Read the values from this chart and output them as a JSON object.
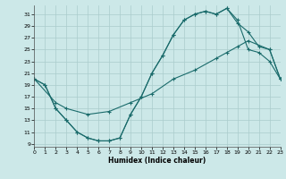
{
  "background_color": "#cce8e8",
  "grid_color": "#aacccc",
  "line_color": "#1a6b6b",
  "xlabel": "Humidex (Indice chaleur)",
  "xlim": [
    0,
    23
  ],
  "ylim": [
    8.5,
    32.5
  ],
  "xticks": [
    0,
    1,
    2,
    3,
    4,
    5,
    6,
    7,
    8,
    9,
    10,
    11,
    12,
    13,
    14,
    15,
    16,
    17,
    18,
    19,
    20,
    21,
    22,
    23
  ],
  "yticks": [
    9,
    11,
    13,
    15,
    17,
    19,
    21,
    23,
    25,
    27,
    29,
    31
  ],
  "line1_x": [
    0,
    1,
    2,
    3,
    4,
    5,
    6,
    7,
    8,
    9,
    10,
    11,
    12,
    13,
    14,
    15,
    16,
    17,
    18,
    19,
    20,
    21,
    22,
    23
  ],
  "line1_y": [
    20,
    19,
    15,
    13,
    11,
    10,
    9.5,
    9.5,
    10,
    14,
    17,
    21,
    24,
    27.5,
    30,
    31,
    31.5,
    31,
    32,
    30,
    25,
    24.5,
    23,
    20
  ],
  "line2_x": [
    0,
    1,
    2,
    3,
    4,
    5,
    6,
    7,
    8,
    9,
    10,
    11,
    12,
    13,
    14,
    15,
    16,
    17,
    18,
    19,
    20,
    21,
    22,
    23
  ],
  "line2_y": [
    20,
    19,
    15,
    13,
    11,
    10,
    9.5,
    9.5,
    10,
    14,
    17,
    21,
    24,
    27.5,
    30,
    31,
    31.5,
    31,
    32,
    29.5,
    28,
    25.5,
    25,
    20
  ],
  "line3_x": [
    0,
    2,
    3,
    5,
    7,
    9,
    11,
    13,
    15,
    17,
    18,
    19,
    20,
    22,
    23
  ],
  "line3_y": [
    20,
    16,
    15,
    14,
    14.5,
    16,
    17.5,
    20,
    21.5,
    23.5,
    24.5,
    25.5,
    26.5,
    25,
    20
  ]
}
